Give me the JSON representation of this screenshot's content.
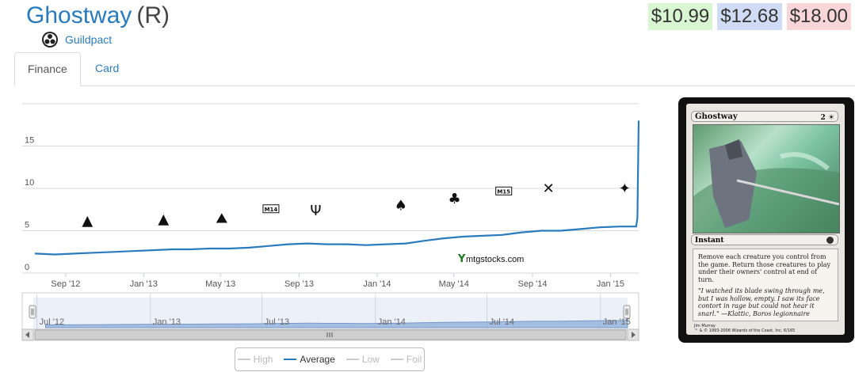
{
  "header": {
    "card_name": "Ghostway",
    "rarity": "(R)",
    "set_name": "Guildpact",
    "set_icon": "guildpact-set-icon"
  },
  "prices": {
    "low": "$10.99",
    "average": "$12.68",
    "high": "$18.00",
    "low_color": "#d9f6d3",
    "average_color": "#d0dcf5",
    "high_color": "#f8d6d8"
  },
  "tabs": [
    {
      "label": "Finance",
      "active": true
    },
    {
      "label": "Card",
      "active": false
    }
  ],
  "chart_data": {
    "type": "line",
    "series": [
      {
        "name": "Average",
        "color": "#2a7bbd",
        "x": [
          "2012-07-15",
          "2012-08-15",
          "2012-09-15",
          "2012-10-15",
          "2012-11-15",
          "2012-12-15",
          "2013-01-15",
          "2013-02-15",
          "2013-03-15",
          "2013-04-15",
          "2013-05-15",
          "2013-06-15",
          "2013-07-15",
          "2013-08-15",
          "2013-09-15",
          "2013-10-15",
          "2013-11-15",
          "2013-12-15",
          "2014-01-15",
          "2014-02-15",
          "2014-03-15",
          "2014-04-15",
          "2014-05-15",
          "2014-06-15",
          "2014-07-15",
          "2014-08-15",
          "2014-09-15",
          "2014-10-15",
          "2014-11-15",
          "2014-12-15",
          "2015-01-15",
          "2015-02-10",
          "2015-02-12",
          "2015-02-14"
        ],
        "values": [
          2.3,
          2.2,
          2.3,
          2.4,
          2.5,
          2.6,
          2.7,
          2.8,
          2.8,
          2.9,
          2.9,
          3.0,
          3.2,
          3.4,
          3.5,
          3.4,
          3.4,
          3.3,
          3.4,
          3.5,
          3.8,
          4.1,
          4.3,
          4.4,
          4.5,
          4.8,
          5.0,
          5.0,
          5.2,
          5.4,
          5.5,
          5.5,
          6.5,
          18.0
        ]
      }
    ],
    "yticks": [
      "0",
      "5",
      "10",
      "15"
    ],
    "ylim": [
      0,
      20
    ],
    "xticks": [
      "Sep '12",
      "Jan '13",
      "May '13",
      "Sep '13",
      "Jan '14",
      "May '14",
      "Sep '14",
      "Jan '15"
    ],
    "watermark": "mtgstocks.com",
    "set_release_icons": [
      "rtr-icon",
      "gtc-icon",
      "dgm-icon",
      "m14-icon",
      "ths-icon",
      "bng-icon",
      "jou-icon",
      "m15-icon",
      "ktk-icon",
      "frf-icon"
    ],
    "navigator_labels": [
      "Jul '12",
      "Jan '13",
      "Jul '13",
      "Jan '14",
      "Jul '14",
      "Jan '15"
    ],
    "grid": true
  },
  "legend": {
    "items": [
      {
        "label": "High",
        "on": false
      },
      {
        "label": "Average",
        "on": true
      },
      {
        "label": "Low",
        "on": false
      },
      {
        "label": "Foil",
        "on": false
      }
    ]
  },
  "card_image": {
    "name": "Ghostway",
    "mana": "2 ☀",
    "type_line": "Instant",
    "rules_text": "Remove each creature you control from the game. Return those creatures to play under their owners' control at end of turn.",
    "flavor_text": "\"I watched its blade swing through me, but I was hollow, empty. I saw its face contort in rage but could not hear it snarl.\" —Klattic, Boros legionnaire",
    "artist": "Jim Murray",
    "copyright": "™ & © 1993-2006 Wizards of the Coast, Inc. 6/165"
  }
}
